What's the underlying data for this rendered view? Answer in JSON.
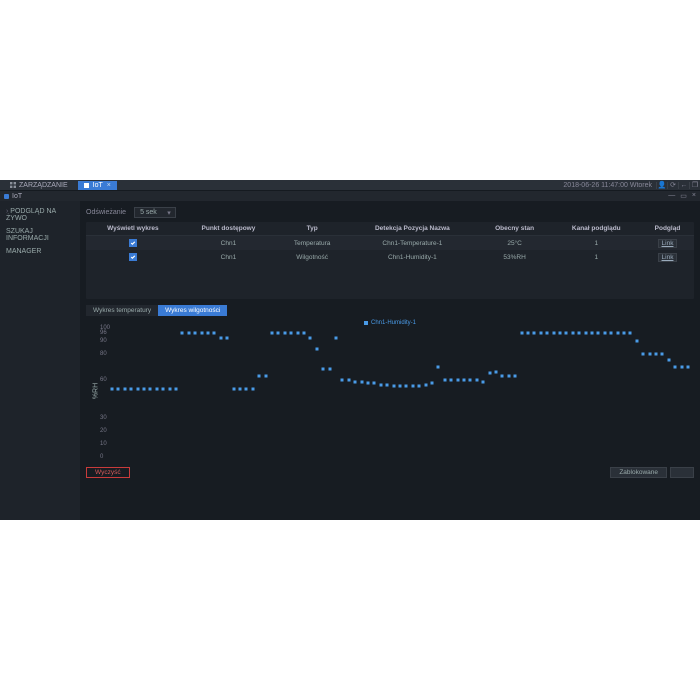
{
  "topbar": {
    "mgmt_label": "ZARZĄDZANIE",
    "tab_label": "IoT",
    "datetime": "2018-06-26 11:47:00 Wtorek"
  },
  "titlebar": {
    "title": "IoT"
  },
  "sidebar": {
    "items": [
      {
        "label": "PODGLĄD NA ŻYWO"
      },
      {
        "label": "SZUKAJ INFORMACJI"
      },
      {
        "label": "MANAGER"
      }
    ]
  },
  "filter": {
    "label": "Odświeżanie",
    "selected": "5 sek"
  },
  "table": {
    "columns": [
      "Wyświetl wykres",
      "Punkt dostępowy",
      "Typ",
      "Detekcja Pozycja Nazwa",
      "Obecny stan",
      "Kanał podglądu",
      "Podgląd"
    ],
    "rows": [
      {
        "checked": true,
        "ap": "Chn1",
        "type": "Temperatura",
        "detect": "Chn1-Temperature-1",
        "state": "25°C",
        "channel": "1",
        "link": "Link"
      },
      {
        "checked": true,
        "ap": "Chn1",
        "type": "Wilgotność",
        "detect": "Chn1-Humidity-1",
        "state": "53%RH",
        "channel": "1",
        "link": "Link"
      }
    ]
  },
  "charttabs": {
    "temp": "Wykres temperatury",
    "humid": "Wykres wilgotności"
  },
  "chart": {
    "type": "scatter",
    "legend_label": "Chn1-Humidity-1",
    "ylabel": "%RH",
    "ylim": [
      0,
      100
    ],
    "yticks": [
      0,
      10,
      20,
      30,
      60,
      80,
      90,
      96,
      100
    ],
    "point_color": "#4a9be8",
    "background": "#171c22",
    "data": [
      53,
      53,
      53,
      53,
      53,
      53,
      53,
      53,
      53,
      53,
      53,
      96,
      96,
      96,
      96,
      96,
      96,
      92,
      92,
      53,
      53,
      53,
      53,
      63,
      63,
      96,
      96,
      96,
      96,
      96,
      96,
      92,
      84,
      68,
      68,
      92,
      60,
      60,
      58,
      58,
      57,
      57,
      56,
      56,
      55,
      55,
      55,
      55,
      55,
      56,
      57,
      70,
      60,
      60,
      60,
      60,
      60,
      60,
      58,
      65,
      66,
      63,
      63,
      63,
      96,
      96,
      96,
      96,
      96,
      96,
      96,
      96,
      96,
      96,
      96,
      96,
      96,
      96,
      96,
      96,
      96,
      96,
      90,
      80,
      80,
      80,
      80,
      75,
      70,
      70,
      70
    ]
  },
  "footer": {
    "clear": "Wyczyść",
    "lock": "Zablokowane"
  }
}
